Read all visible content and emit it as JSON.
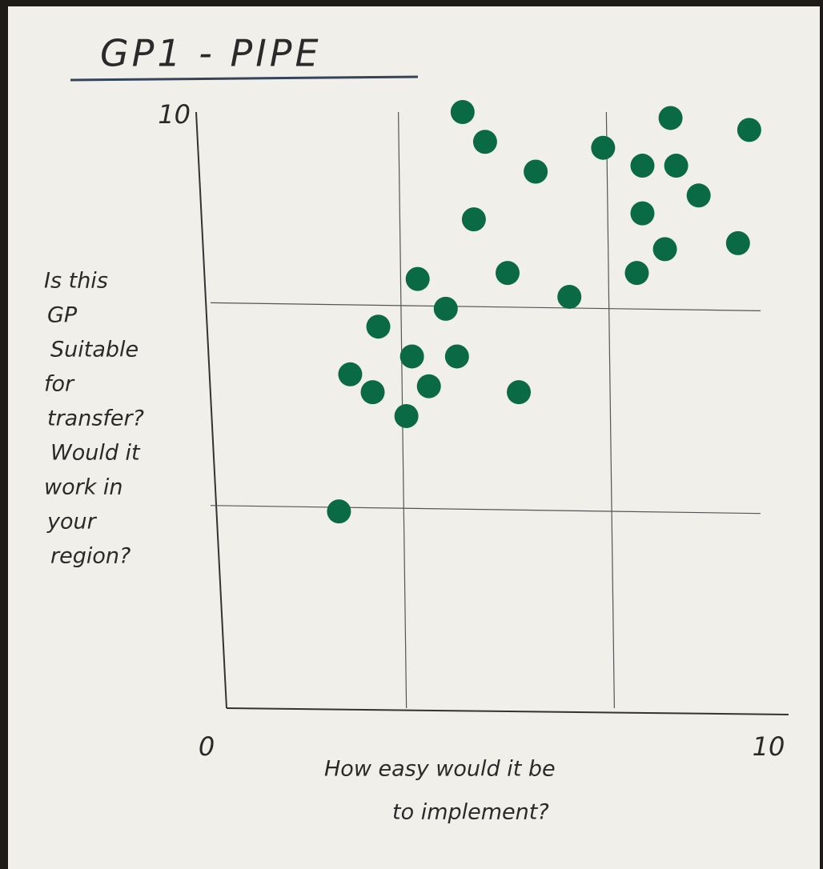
{
  "chart_data": {
    "type": "scatter",
    "title": "GP1 - PIPE",
    "xlabel": [
      "How easy would it be",
      "to implement?"
    ],
    "ylabel": [
      "Is this",
      "GP",
      "Suitable",
      "for",
      "transfer?",
      "Would it",
      "work in",
      "your",
      "region?"
    ],
    "xlim": [
      0,
      10
    ],
    "ylim": [
      0,
      10
    ],
    "xticks": [
      0,
      10
    ],
    "yticks": [
      10
    ],
    "xgrid": [
      3.2,
      6.9
    ],
    "ygrid": [
      3.4,
      6.8
    ],
    "color": "#0b6a46",
    "x": [
      4.2,
      4.6,
      5.5,
      6.7,
      7.9,
      9.3,
      7.4,
      8.0,
      8.4,
      7.4,
      4.4,
      7.8,
      9.1,
      7.3,
      5.0,
      3.4,
      6.1,
      3.9,
      2.7,
      3.3,
      4.1,
      2.2,
      3.6,
      2.6,
      5.2,
      3.2,
      2.0
    ],
    "y": [
      10.0,
      9.5,
      9.0,
      9.4,
      9.9,
      9.7,
      9.1,
      9.1,
      8.6,
      8.3,
      8.2,
      7.7,
      7.8,
      7.3,
      7.3,
      7.2,
      6.9,
      6.7,
      6.4,
      5.9,
      5.9,
      5.6,
      5.4,
      5.3,
      5.3,
      4.9,
      3.3
    ]
  }
}
